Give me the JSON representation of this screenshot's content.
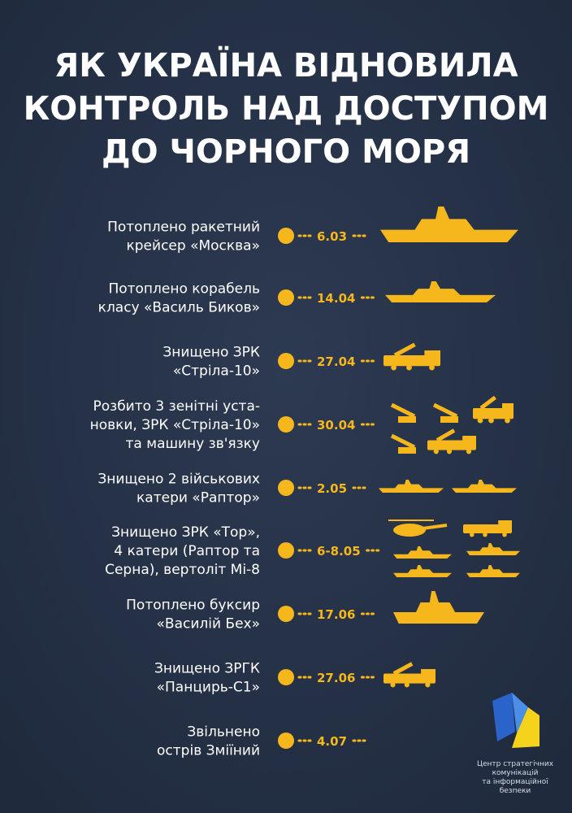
{
  "title": [
    "ЯК УКРАЇНА ВІДНОВИЛА",
    "КОНТРОЛЬ НАД ДОСТУПОМ",
    "ДО ЧОРНОГО МОРЯ"
  ],
  "items": [
    {
      "text": [
        "Потоплено ракетний",
        "крейсер «Москва»"
      ],
      "date": "6.03"
    },
    {
      "text": [
        "Потоплено корабель",
        "класу «Василь Биков»"
      ],
      "date": "14.04"
    },
    {
      "text": [
        "Знищено ЗРК",
        "«Стріла-10»"
      ],
      "date": "27.04"
    },
    {
      "text": [
        "Розбито 3 зенітні уста-",
        "новки, ЗРК «Стріла-10»",
        "та машину зв'язку"
      ],
      "date": "30.04"
    },
    {
      "text": [
        "Знищено 2 військових",
        "катери «Раптор»"
      ],
      "date": "2.05"
    },
    {
      "text": [
        "Знищено ЗРК «Тор»,",
        "4 катери (Раптор та",
        "Серна), вертоліт Мі-8"
      ],
      "date": "6-8.05"
    },
    {
      "text": [
        "Потоплено буксир",
        "«Василій Бех»"
      ],
      "date": "17.06"
    },
    {
      "text": [
        "Знищено ЗРГК",
        "«Панцирь-С1»"
      ],
      "date": "27.06"
    },
    {
      "text": [
        "Звільнено",
        "острів Зміїний"
      ],
      "date": "4.07"
    }
  ],
  "logo": [
    "Центр стратегічних",
    "комунікацій",
    "та інформаційної",
    "безпеки"
  ]
}
